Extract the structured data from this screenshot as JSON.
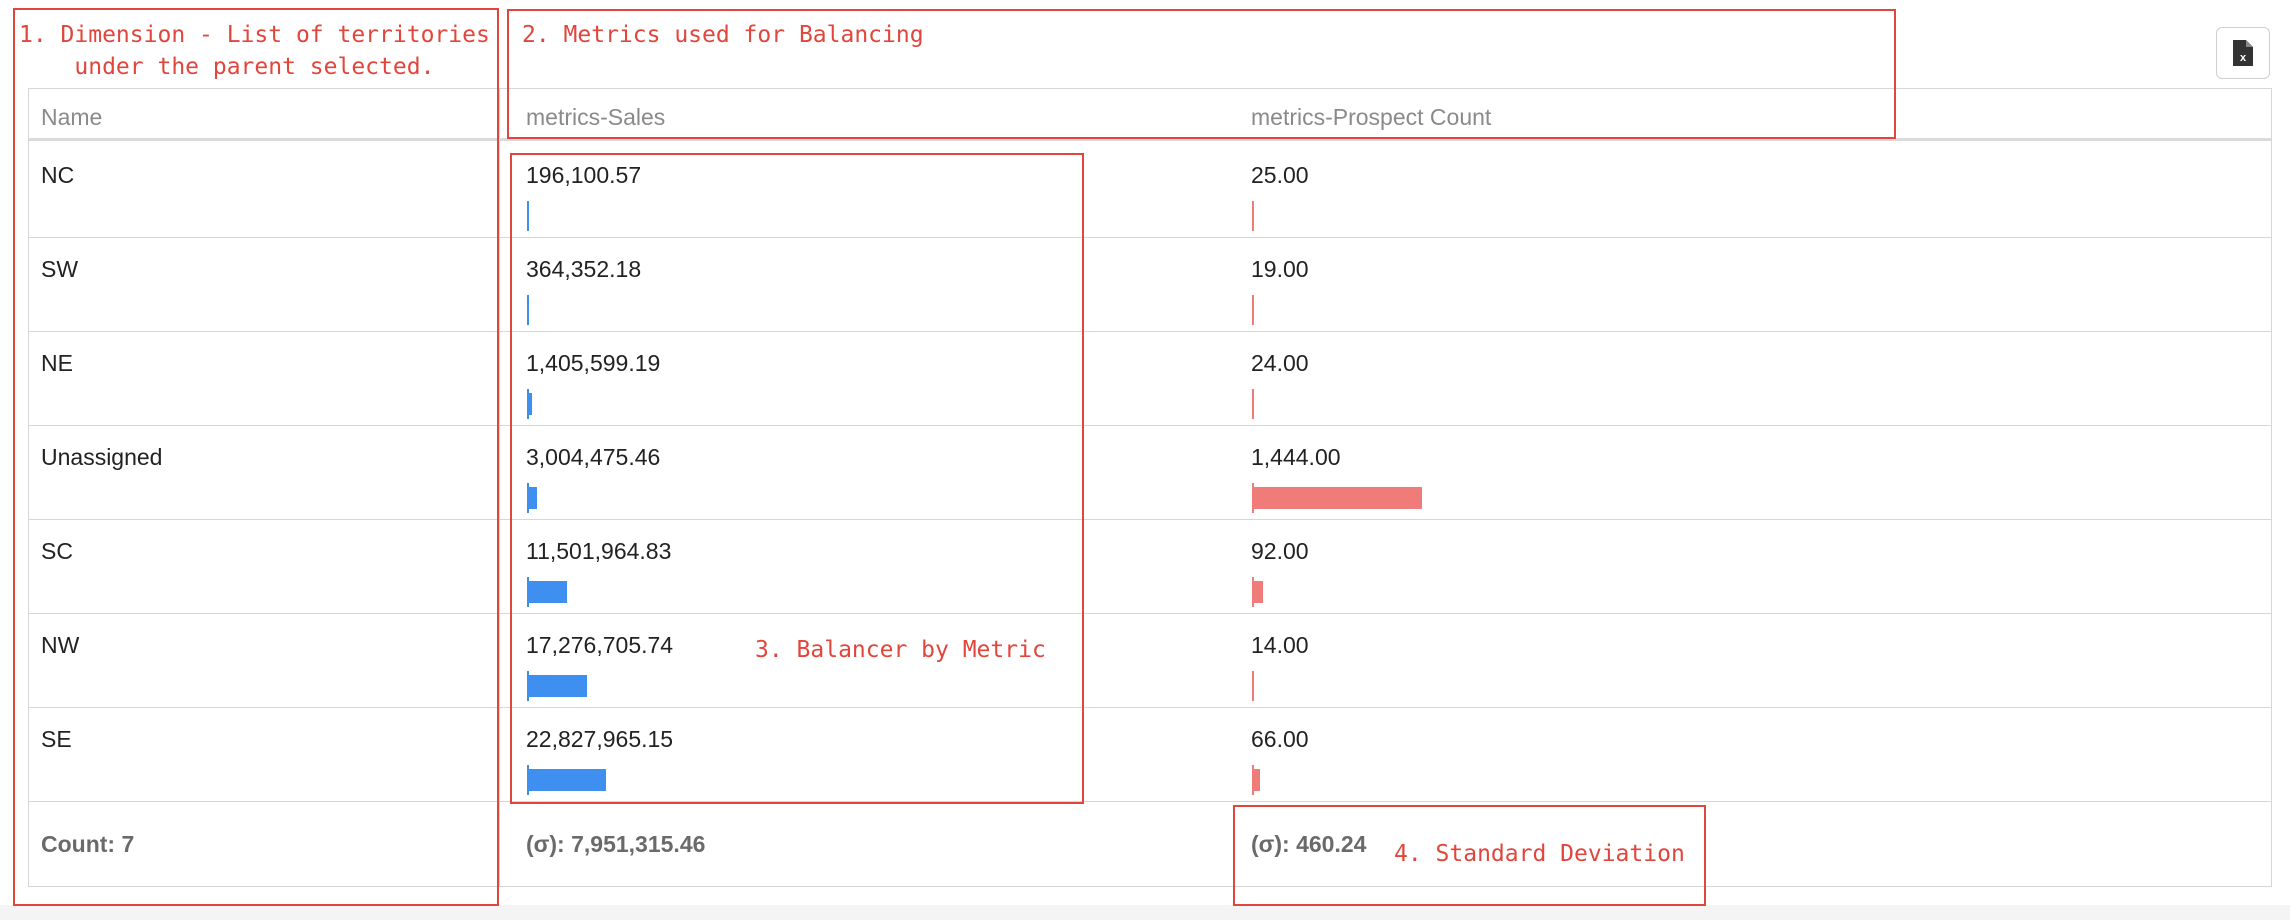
{
  "toolbar": {
    "export_icon_name": "excel-export-icon",
    "export_glyph": "x"
  },
  "table": {
    "headers": {
      "name": "Name",
      "sales": "metrics-Sales",
      "prospect": "metrics-Prospect Count"
    },
    "rows": [
      {
        "name": "NC",
        "sales": "196,100.57",
        "prospect": "25.00",
        "sales_value": 196100.57,
        "prospect_value": 25
      },
      {
        "name": "SW",
        "sales": "364,352.18",
        "prospect": "19.00",
        "sales_value": 364352.18,
        "prospect_value": 19
      },
      {
        "name": "NE",
        "sales": "1,405,599.19",
        "prospect": "24.00",
        "sales_value": 1405599.19,
        "prospect_value": 24
      },
      {
        "name": "Unassigned",
        "sales": "3,004,475.46",
        "prospect": "1,444.00",
        "sales_value": 3004475.46,
        "prospect_value": 1444
      },
      {
        "name": "SC",
        "sales": "11,501,964.83",
        "prospect": "92.00",
        "sales_value": 11501964.83,
        "prospect_value": 92
      },
      {
        "name": "NW",
        "sales": "17,276,705.74",
        "prospect": "14.00",
        "sales_value": 17276705.74,
        "prospect_value": 14
      },
      {
        "name": "SE",
        "sales": "22,827,965.15",
        "prospect": "66.00",
        "sales_value": 22827965.15,
        "prospect_value": 66
      }
    ],
    "footer": {
      "count": "Count: 7",
      "sales_std": "(σ): 7,951,315.46",
      "prospect_std": "(σ): 460.24"
    }
  },
  "bar_colors": {
    "sales": "#3f8ff0",
    "prospect": "#ef7c79"
  },
  "annotations": {
    "a1": "1. Dimension - List of territories\n    under the parent selected.",
    "a2": "2. Metrics used for Balancing",
    "a3": "3. Balancer by Metric",
    "a4": "4. Standard Deviation",
    "color": "#e0463c"
  }
}
